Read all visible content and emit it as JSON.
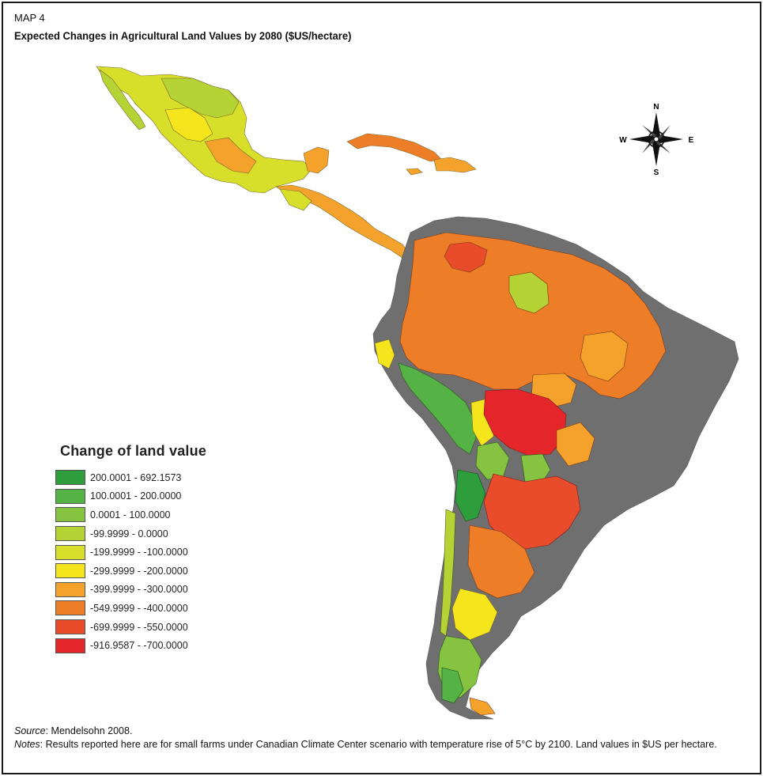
{
  "map": {
    "label": "MAP 4",
    "title": "Expected Changes in Agricultural Land Values by 2080 ($US/hectare)"
  },
  "legend": {
    "title": "Change of land value",
    "items": [
      {
        "label": "200.0001 - 692.1573",
        "color": "#2e9d3b"
      },
      {
        "label": "100.0001 - 200.0000",
        "color": "#55b346"
      },
      {
        "label": "0.0001 - 100.0000",
        "color": "#86c341"
      },
      {
        "label": "-99.9999 - 0.0000",
        "color": "#b5d334"
      },
      {
        "label": "-199.9999 - -100.0000",
        "color": "#d8df2a"
      },
      {
        "label": "-299.9999 - -200.0000",
        "color": "#f5e51d"
      },
      {
        "label": "-399.9999 - -300.0000",
        "color": "#f4a22b"
      },
      {
        "label": "-549.9999 - -400.0000",
        "color": "#ee7d27"
      },
      {
        "label": "-699.9999 - -550.0000",
        "color": "#e84c2a"
      },
      {
        "label": "-916.9587 - -700.0000",
        "color": "#e4262b"
      }
    ],
    "no_data_color": "#6f6f6f"
  },
  "compass": {
    "n": "N",
    "s": "S",
    "e": "E",
    "w": "W"
  },
  "footer": {
    "source_label": "Source",
    "source_text": ": Mendelsohn 2008.",
    "notes_label": "Notes",
    "notes_text": ": Results reported here are for small farms under Canadian Climate Center scenario with temperature rise of 5°C by 2100. Land values in $US per hectare."
  }
}
